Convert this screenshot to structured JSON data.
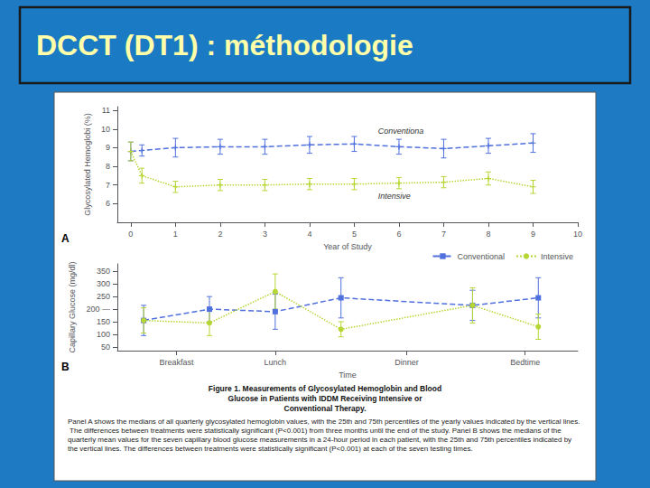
{
  "title": "DCCT (DT1) : méthodologie",
  "annotations": [
    "Figure 1. Measurements of Glycosylated Hemoglobin and Blood",
    "Glucose in Patients with IDDM Receiving Intensive or",
    "Conventional Therapy.",
    "Panel A shows the medians of all quarterly glycosylated hemoglobin values, with the 25th and 75th percentiles of the yearly values indicated by the vertical lines. The differences between treatments were statistically significant (P<0.001) from three months until the end of the study. Panel B shows the medians of the quarterly mean values for the seven capillary blood glucose measurements in a 24-hour period in each patient, with the 25th and 75th percentiles indicated by the vertical lines. The differences between treatments were statistically significant (P<0.001) at each of the seven testing times."
  ],
  "chart_data": [
    {
      "type": "line",
      "x": [
        0,
        0.25,
        1,
        2,
        3,
        4,
        5,
        6,
        7,
        8,
        9
      ],
      "xlabel": "Year of Study",
      "ylabel": "Glycosylated Hemoglobi (%)",
      "xlim": [
        -0.3,
        10
      ],
      "xticks": [
        0,
        1,
        2,
        3,
        4,
        5,
        6,
        7,
        8,
        9,
        10
      ],
      "ylim": [
        5,
        11.2
      ],
      "yticks": [
        6,
        7,
        8,
        9,
        10,
        11
      ],
      "grid": false,
      "series": [
        {
          "values": [
            8.8,
            8.85,
            9.0,
            9.05,
            9.05,
            9.15,
            9.2,
            9.05,
            8.95,
            9.1,
            9.25
          ],
          "yerr_low": [
            0.5,
            0.3,
            0.5,
            0.4,
            0.4,
            0.45,
            0.4,
            0.4,
            0.5,
            0.4,
            0.5
          ],
          "yerr_high": [
            0.5,
            0.3,
            0.5,
            0.4,
            0.4,
            0.45,
            0.4,
            0.4,
            0.5,
            0.4,
            0.5
          ],
          "marker": "plus",
          "line_style": "dashed"
        },
        {
          "values": [
            8.8,
            7.5,
            6.9,
            7.0,
            7.0,
            7.05,
            7.05,
            7.1,
            7.15,
            7.35,
            6.9
          ],
          "yerr_low": [
            0.5,
            0.4,
            0.3,
            0.3,
            0.3,
            0.3,
            0.3,
            0.3,
            0.3,
            0.35,
            0.35
          ],
          "yerr_high": [
            0.5,
            0.4,
            0.3,
            0.3,
            0.3,
            0.3,
            0.3,
            0.3,
            0.3,
            0.35,
            0.35
          ],
          "marker": "plus",
          "line_style": "dotted"
        }
      ],
      "annotations": [
        {
          "text": "A"
        },
        {
          "text": "Conventiona",
          "x": 5.5,
          "y": 9.55
        },
        {
          "text": "Intensive",
          "x": 5.5,
          "y": 6.7
        }
      ]
    },
    {
      "type": "line",
      "x": [
        0,
        0.5,
        1.0,
        1.5,
        2.5,
        3.0
      ],
      "xlabel": "Time",
      "ylabel": "Capillary Glucose (mg/dl)",
      "xlim": [
        -0.2,
        3.3
      ],
      "xticks": [
        {
          "value": 0.25,
          "label": "Breakfast"
        },
        {
          "value": 1.0,
          "label": "Lunch"
        },
        {
          "value": 2.0,
          "label": "Dinner"
        },
        {
          "value": 2.9,
          "label": "Bedtime"
        }
      ],
      "ylim": [
        35,
        380
      ],
      "yticks": [
        50,
        100,
        150,
        {
          "value": 200,
          "label": "200 —"
        },
        250,
        300,
        350
      ],
      "grid": false,
      "legend": "upper right",
      "series": [
        {
          "name": "Conventional",
          "values": [
            155,
            200,
            190,
            245,
            215,
            245
          ],
          "yerr_low": [
            60,
            50,
            70,
            80,
            60,
            80
          ],
          "yerr_high": [
            60,
            50,
            70,
            80,
            60,
            80
          ],
          "marker": "square",
          "line_style": "dashed"
        },
        {
          "name": "Intensive",
          "values": [
            155,
            145,
            270,
            120,
            215,
            130
          ],
          "yerr_low": [
            50,
            50,
            70,
            30,
            70,
            50
          ],
          "yerr_high": [
            50,
            50,
            70,
            30,
            70,
            50
          ],
          "marker": "circle",
          "line_style": "dotted"
        }
      ],
      "annotations": [
        {
          "text": "B"
        }
      ]
    }
  ]
}
